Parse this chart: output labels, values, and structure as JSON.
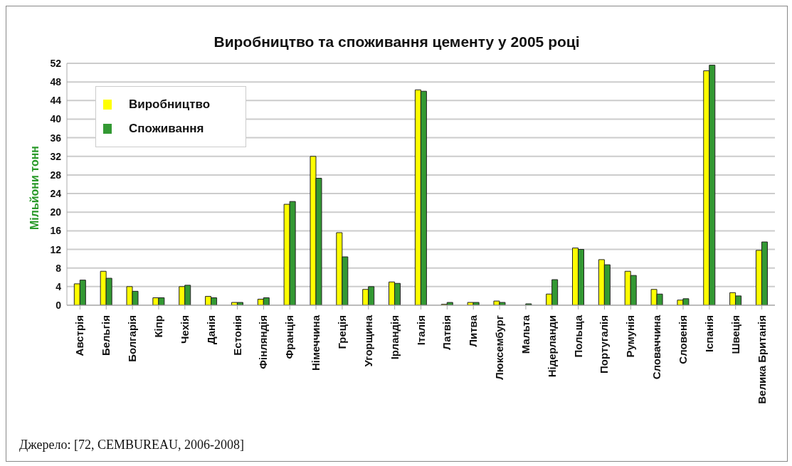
{
  "chart_data": {
    "type": "bar",
    "title": "Виробництво та споживання цементу у 2005 році",
    "ylabel": "Мільйони тонн",
    "categories": [
      "Австрія",
      "Бельгія",
      "Болгарія",
      "Кіпр",
      "Чехія",
      "Данія",
      "Естонія",
      "Фінляндія",
      "Франція",
      "Німеччина",
      "Греція",
      "Угорщина",
      "Ірландія",
      "Італія",
      "Латвія",
      "Литва",
      "Люксембург",
      "Мальта",
      "Нідерланди",
      "Польща",
      "Португалія",
      "Румунія",
      "Словаччина",
      "Словенія",
      "Іспанія",
      "Швеція",
      "Велика Британія"
    ],
    "series": [
      {
        "name": "Виробництво",
        "color": "#ffff00",
        "values": [
          4.6,
          7.3,
          4.0,
          1.6,
          4.0,
          1.9,
          0.6,
          1.3,
          21.7,
          32.0,
          15.6,
          3.4,
          5.0,
          46.3,
          0.2,
          0.6,
          0.9,
          0,
          2.4,
          12.3,
          9.8,
          7.3,
          3.4,
          1.1,
          50.4,
          2.7,
          11.8
        ]
      },
      {
        "name": "Споживання",
        "color": "#339933",
        "values": [
          5.4,
          5.8,
          3.0,
          1.6,
          4.3,
          1.6,
          0.6,
          1.6,
          22.3,
          27.3,
          10.4,
          4.0,
          4.7,
          46.0,
          0.6,
          0.6,
          0.6,
          0.3,
          5.5,
          12.0,
          8.7,
          6.4,
          2.4,
          1.4,
          51.6,
          2.0,
          13.6
        ]
      }
    ],
    "ylim": [
      0,
      52
    ],
    "yticks": [
      0,
      4,
      8,
      12,
      16,
      20,
      24,
      28,
      32,
      36,
      40,
      44,
      48,
      52
    ],
    "grid": "y",
    "legend": "top left",
    "annotations": [
      "Джерело: [72, CEMBUREAU, 2006-2008]"
    ]
  }
}
